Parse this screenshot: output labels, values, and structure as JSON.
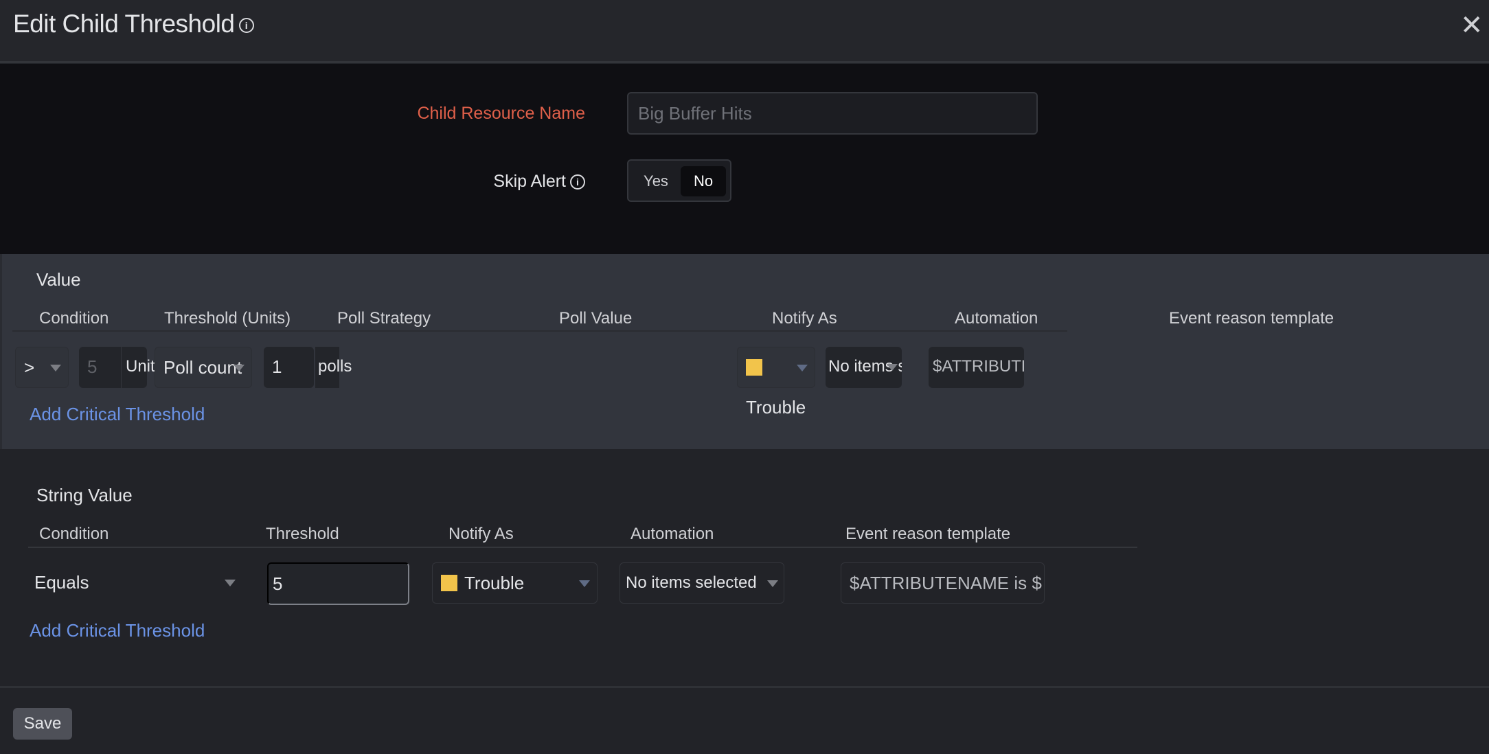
{
  "header": {
    "title": "Edit Child Threshold",
    "info_icon": "info-icon",
    "close_icon": "close-icon"
  },
  "form": {
    "child_resource_label": "Child Resource Name",
    "child_resource_value": "Big Buffer Hits",
    "skip_alert_label": "Skip Alert",
    "skip_alert_options": [
      "Yes",
      "No"
    ],
    "skip_alert_selected": "No"
  },
  "value_section": {
    "title": "Value",
    "headers": [
      "Condition",
      "Threshold (Units)",
      "Poll Strategy",
      "Poll Value",
      "Notify As",
      "Automation",
      "Event reason template"
    ],
    "condition": ">",
    "threshold_placeholder": "5",
    "threshold_unit": "Units",
    "poll_strategy": "Poll count",
    "poll_value": "1",
    "poll_unit": "polls",
    "notify_as": "Trouble",
    "automation": "No items selected",
    "event_reason": "$ATTRIBUTENAME is $",
    "add_link": "Add Critical Threshold"
  },
  "string_section": {
    "title": "String Value",
    "headers": [
      "Condition",
      "Threshold",
      "Notify As",
      "Automation",
      "Event reason template"
    ],
    "condition": "Equals",
    "threshold": "5",
    "notify_as": "Trouble",
    "automation": "No items selected",
    "event_reason": "$ATTRIBUTENAME is $",
    "add_link": "Add Critical Threshold"
  },
  "footer": {
    "save_label": "Save"
  },
  "colors": {
    "trouble": "#f2c44b",
    "required_label": "#e0604a",
    "link": "#6b93e6"
  }
}
